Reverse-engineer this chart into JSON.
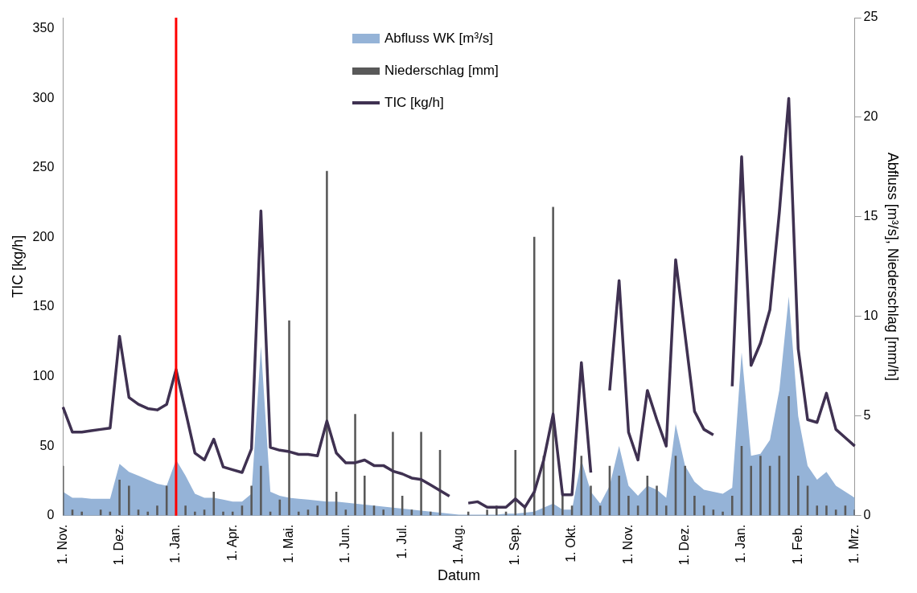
{
  "chart_data": {
    "type": "line",
    "xlabel": "Datum",
    "ylabel": "TIC [kg/h]",
    "y2label": "Abfluss [m³/s], Niederschlag [mm/h]",
    "categories": [
      "1. Nov.",
      null,
      null,
      null,
      null,
      null,
      "1. Dez.",
      null,
      null,
      null,
      null,
      null,
      "1. Jan.",
      null,
      null,
      null,
      null,
      null,
      "1. Apr.",
      null,
      null,
      null,
      null,
      null,
      "1. Mai.",
      null,
      null,
      null,
      null,
      null,
      "1. Jun.",
      null,
      null,
      null,
      null,
      null,
      "1. Jul.",
      null,
      null,
      null,
      null,
      null,
      "1. Aug.",
      null,
      null,
      null,
      null,
      null,
      "1. Sep.",
      null,
      null,
      null,
      null,
      null,
      "1. Okt.",
      null,
      null,
      null,
      null,
      null,
      "1. Nov.",
      null,
      null,
      null,
      null,
      null,
      "1. Dez.",
      null,
      null,
      null,
      null,
      null,
      "1. Jan.",
      null,
      null,
      null,
      null,
      null,
      "1. Feb.",
      null,
      null,
      null,
      null,
      null,
      "1. Mrz."
    ],
    "series": [
      {
        "name": "Abfluss WK [m³/s]",
        "type": "area",
        "axis": "y2",
        "color": "#95b3d7",
        "values": [
          1.2,
          0.9,
          0.9,
          0.85,
          0.85,
          0.85,
          2.6,
          2.2,
          2.0,
          1.8,
          1.6,
          1.5,
          2.8,
          2.0,
          1.1,
          0.9,
          0.9,
          0.8,
          0.7,
          0.7,
          1.1,
          8.5,
          1.2,
          1.0,
          0.9,
          0.85,
          0.8,
          0.75,
          0.7,
          0.7,
          0.65,
          0.6,
          0.55,
          0.5,
          0.45,
          0.4,
          0.35,
          0.3,
          0.25,
          0.2,
          0.15,
          0.1,
          0.05,
          0.05,
          0.05,
          0.05,
          0.05,
          0.1,
          0.1,
          0.15,
          0.2,
          0.4,
          0.6,
          0.3,
          0.3,
          2.8,
          1.2,
          0.6,
          1.5,
          3.5,
          1.5,
          1.0,
          1.5,
          1.3,
          0.9,
          4.6,
          2.5,
          1.7,
          1.3,
          1.2,
          1.1,
          1.4,
          8.2,
          3.0,
          3.1,
          3.8,
          6.3,
          11,
          5.0,
          2.5,
          1.8,
          2.2,
          1.5,
          1.2,
          0.9
        ]
      },
      {
        "name": "Niederschlag [mm]",
        "type": "bar",
        "axis": "y2",
        "color": "#595959",
        "values": [
          2.5,
          0.3,
          0.2,
          0,
          0.3,
          0.2,
          1.8,
          1.5,
          0.3,
          0.2,
          0.5,
          1.5,
          null,
          0.5,
          0.2,
          0.3,
          1.2,
          0.2,
          0.2,
          0.5,
          1.5,
          2.5,
          0.2,
          0.8,
          9.8,
          0.2,
          0.3,
          0.5,
          17.3,
          1.2,
          0.3,
          5.1,
          2.0,
          0.5,
          0.3,
          4.2,
          1.0,
          0.3,
          4.2,
          0.2,
          3.3,
          0,
          0,
          0.2,
          0,
          0.3,
          0.5,
          0.2,
          3.3,
          0.5,
          14,
          3.0,
          15.5,
          1.0,
          0.5,
          3.0,
          1.5,
          0.5,
          2.5,
          2.0,
          1.0,
          0.5,
          2.0,
          1.5,
          0.5,
          3.0,
          2.5,
          1.0,
          0.5,
          0.3,
          0.2,
          1.0,
          3.5,
          2.5,
          3.0,
          2.5,
          3.0,
          6.0,
          2.0,
          1.5,
          0.5,
          0.5,
          0.3,
          0.5,
          0.3
        ]
      },
      {
        "name": "TIC [kg/h]",
        "axis": "y",
        "color": "#3f3151",
        "values": [
          78,
          60,
          60,
          61,
          62,
          63,
          129,
          85,
          80,
          77,
          76,
          80,
          105,
          75,
          45,
          40,
          55,
          35,
          33,
          31,
          48,
          219,
          49,
          47,
          46,
          44,
          44,
          43,
          68,
          45,
          38,
          38,
          40,
          36,
          36,
          32,
          30,
          27,
          26,
          22,
          18,
          14,
          null,
          9,
          10,
          6,
          6,
          6,
          12,
          6,
          17,
          40,
          73,
          15,
          15,
          110,
          31,
          null,
          90,
          169,
          60,
          40,
          90,
          69,
          50,
          184,
          130,
          75,
          62,
          58,
          null,
          93,
          258,
          108,
          124,
          148,
          218,
          300,
          120,
          69,
          67,
          88,
          62,
          56,
          50
        ]
      }
    ],
    "ylim": [
      0,
      358
    ],
    "yticks": [
      0,
      50,
      100,
      150,
      200,
      250,
      300,
      350
    ],
    "y2lim": [
      0,
      25
    ],
    "y2ticks": [
      0,
      5,
      10,
      15,
      20,
      25
    ],
    "ref_lines": [
      {
        "axis": "x",
        "value": "1. Jan.",
        "color": "#ff0000"
      }
    ],
    "legend": "top",
    "grid": false
  }
}
